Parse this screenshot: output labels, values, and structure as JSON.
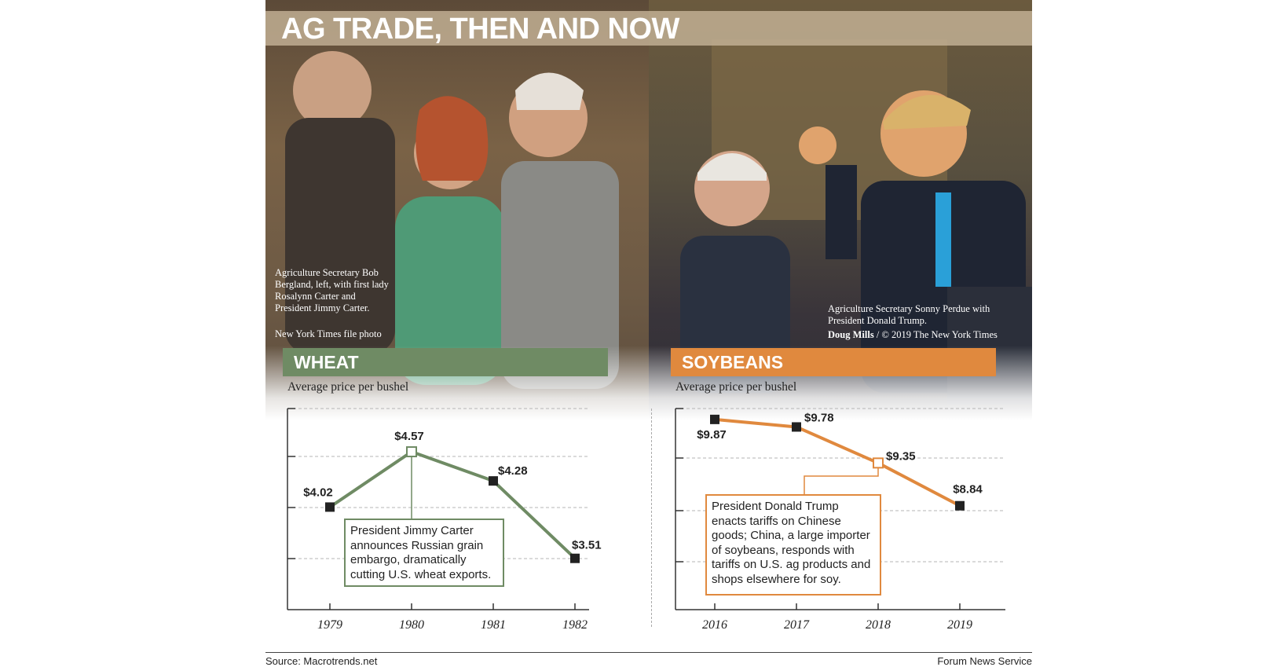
{
  "title": "AG TRADE, THEN AND NOW",
  "photos": {
    "left_caption": "Agriculture Secretary Bob Bergland, left, with first lady Rosalynn Carter and President Jimmy Carter.",
    "left_credit": "New York Times file photo",
    "right_caption": "Agriculture Secretary Sonny Perdue with President Donald Trump.",
    "right_credit_name": "Doug Mills",
    "right_credit_rest": " / © 2019 The New York Times"
  },
  "colors": {
    "wheat": "#6f8b64",
    "soybeans": "#e0893e"
  },
  "chart_data": [
    {
      "type": "line",
      "title": "WHEAT",
      "subtitle": "Average price per bushel",
      "x": [
        "1979",
        "1980",
        "1981",
        "1982"
      ],
      "series": [
        {
          "values": [
            4.02,
            4.57,
            4.28,
            3.51
          ]
        }
      ],
      "data_labels": [
        "$4.02",
        "$4.57",
        "$4.28",
        "$3.51"
      ],
      "highlight_index": 1,
      "ylim": [
        3.0,
        5.0
      ],
      "grid": true,
      "annotation": "President Jimmy Carter announces Russian grain embargo, dramatically cutting U.S. wheat exports."
    },
    {
      "type": "line",
      "title": "SOYBEANS",
      "subtitle": "Average price per bushel",
      "x": [
        "2016",
        "2017",
        "2018",
        "2019"
      ],
      "series": [
        {
          "values": [
            9.87,
            9.78,
            9.35,
            8.84
          ]
        }
      ],
      "data_labels": [
        "$9.87",
        "$9.78",
        "$9.35",
        "$8.84"
      ],
      "highlight_index": 2,
      "ylim": [
        7.6,
        10.0
      ],
      "grid": true,
      "annotation": "President Donald Trump enacts tariffs on Chinese goods; China, a large importer of soybeans, responds with tariffs on U.S. ag products and shops elsewhere for soy."
    }
  ],
  "footer": {
    "source": "Source: Macrotrends.net",
    "credit": "Forum News Service"
  }
}
